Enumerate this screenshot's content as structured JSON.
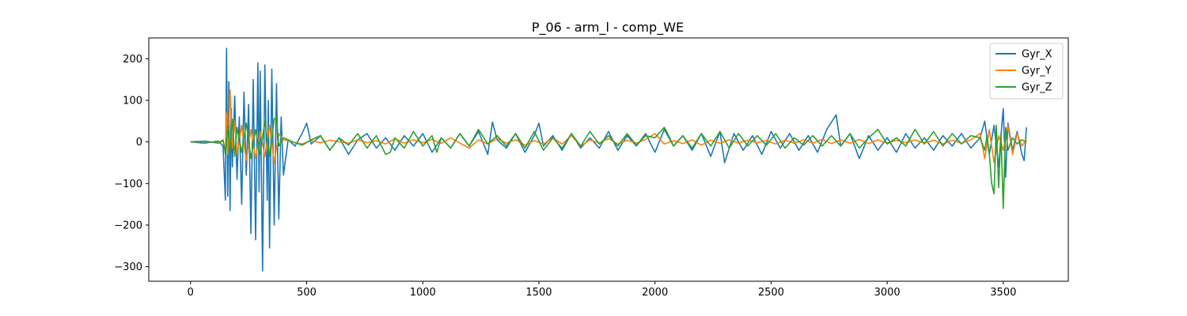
{
  "chart_data": {
    "type": "line",
    "title": "P_06 - arm_l - comp_WE",
    "xlabel": "",
    "ylabel": "",
    "xlim": [
      -180,
      3780
    ],
    "ylim": [
      -335,
      250
    ],
    "xticks": [
      0,
      500,
      1000,
      1500,
      2000,
      2500,
      3000,
      3500
    ],
    "yticks": [
      200,
      100,
      0,
      -100,
      -200,
      -300
    ],
    "xtick_labels": [
      "0",
      "500",
      "1000",
      "1500",
      "2000",
      "2500",
      "3000",
      "3500"
    ],
    "ytick_labels": [
      "200",
      "100",
      "0",
      "−100",
      "−200",
      "−300"
    ],
    "grid": false,
    "legend_position": "top-right",
    "series": [
      {
        "name": "Gyr_X",
        "color": "#1f77b4",
        "x": [
          0,
          60,
          120,
          140,
          150,
          155,
          160,
          165,
          170,
          175,
          180,
          190,
          200,
          210,
          220,
          230,
          240,
          250,
          260,
          270,
          280,
          290,
          295,
          300,
          310,
          320,
          330,
          335,
          340,
          350,
          360,
          370,
          380,
          390,
          400,
          420,
          450,
          480,
          500,
          520,
          560,
          600,
          640,
          680,
          720,
          760,
          800,
          840,
          880,
          920,
          960,
          1000,
          1040,
          1080,
          1120,
          1160,
          1200,
          1240,
          1280,
          1300,
          1320,
          1360,
          1400,
          1440,
          1480,
          1500,
          1520,
          1560,
          1600,
          1640,
          1680,
          1720,
          1760,
          1800,
          1840,
          1880,
          1920,
          1960,
          2000,
          2040,
          2080,
          2120,
          2160,
          2200,
          2240,
          2280,
          2300,
          2340,
          2380,
          2420,
          2460,
          2500,
          2540,
          2580,
          2620,
          2660,
          2700,
          2740,
          2780,
          2800,
          2840,
          2880,
          2920,
          2960,
          3000,
          3040,
          3080,
          3120,
          3160,
          3200,
          3240,
          3280,
          3320,
          3360,
          3400,
          3420,
          3440,
          3460,
          3480,
          3490,
          3500,
          3510,
          3520,
          3540,
          3560,
          3580,
          3590,
          3600
        ],
        "y": [
          0,
          -3,
          2,
          -10,
          -140,
          225,
          -130,
          145,
          -165,
          80,
          -60,
          110,
          -90,
          60,
          -150,
          120,
          -80,
          90,
          -220,
          150,
          -235,
          190,
          -120,
          170,
          -310,
          185,
          -140,
          100,
          -255,
          175,
          -200,
          140,
          -185,
          60,
          -80,
          5,
          -10,
          20,
          45,
          -5,
          15,
          -20,
          10,
          -30,
          5,
          20,
          -15,
          10,
          -20,
          15,
          -10,
          20,
          -25,
          10,
          -15,
          20,
          -10,
          25,
          -30,
          48,
          5,
          -15,
          20,
          -25,
          15,
          45,
          -10,
          15,
          -20,
          20,
          -15,
          10,
          -15,
          25,
          -20,
          15,
          -10,
          20,
          -25,
          30,
          -10,
          15,
          -20,
          20,
          -35,
          25,
          -50,
          20,
          -20,
          15,
          -30,
          25,
          -15,
          20,
          -20,
          15,
          -25,
          30,
          65,
          -10,
          20,
          -40,
          15,
          -20,
          10,
          -25,
          20,
          -15,
          10,
          -20,
          15,
          -10,
          20,
          -15,
          10,
          50,
          -30,
          40,
          -60,
          15,
          80,
          -85,
          45,
          -20,
          25,
          -30,
          -45,
          35
        ]
      },
      {
        "name": "Gyr_Y",
        "color": "#ff7f0e",
        "x": [
          0,
          60,
          120,
          140,
          150,
          155,
          160,
          170,
          180,
          190,
          200,
          220,
          240,
          260,
          280,
          300,
          320,
          340,
          360,
          380,
          400,
          440,
          480,
          520,
          560,
          600,
          640,
          680,
          720,
          760,
          800,
          840,
          880,
          920,
          960,
          1000,
          1040,
          1080,
          1120,
          1160,
          1200,
          1240,
          1280,
          1320,
          1360,
          1400,
          1440,
          1480,
          1520,
          1560,
          1600,
          1640,
          1680,
          1720,
          1760,
          1800,
          1840,
          1880,
          1920,
          1960,
          2000,
          2040,
          2080,
          2120,
          2160,
          2200,
          2240,
          2280,
          2320,
          2360,
          2400,
          2440,
          2480,
          2520,
          2560,
          2600,
          2640,
          2680,
          2720,
          2760,
          2800,
          2840,
          2880,
          2920,
          2960,
          3000,
          3040,
          3080,
          3120,
          3160,
          3200,
          3240,
          3280,
          3320,
          3360,
          3400,
          3420,
          3440,
          3460,
          3480,
          3500,
          3520,
          3540,
          3560,
          3580,
          3600
        ],
        "y": [
          0,
          1,
          -2,
          2,
          -20,
          70,
          -30,
          125,
          -15,
          50,
          -30,
          40,
          -45,
          30,
          -40,
          25,
          -35,
          40,
          -50,
          20,
          5,
          0,
          -5,
          3,
          -2,
          4,
          0,
          -3,
          5,
          -2,
          3,
          -5,
          8,
          -3,
          5,
          -2,
          6,
          -4,
          10,
          -3,
          -15,
          5,
          -5,
          8,
          -3,
          5,
          -8,
          3,
          -5,
          10,
          -5,
          15,
          -10,
          5,
          -3,
          8,
          -5,
          4,
          -3,
          6,
          20,
          -5,
          3,
          -4,
          5,
          -8,
          4,
          -3,
          5,
          -3,
          4,
          -2,
          3,
          -5,
          4,
          -3,
          5,
          -3,
          6,
          -4,
          5,
          -3,
          6,
          -4,
          5,
          -3,
          4,
          -2,
          5,
          -3,
          4,
          -5,
          4,
          -3,
          5,
          20,
          -40,
          30,
          -50,
          15,
          -20,
          40,
          -30,
          20,
          -10,
          5
        ]
      },
      {
        "name": "Gyr_Z",
        "color": "#2ca02c",
        "x": [
          0,
          60,
          120,
          140,
          150,
          160,
          170,
          180,
          190,
          200,
          220,
          240,
          260,
          280,
          300,
          320,
          340,
          360,
          370,
          380,
          400,
          440,
          480,
          520,
          560,
          600,
          640,
          680,
          720,
          760,
          800,
          840,
          860,
          880,
          920,
          960,
          1000,
          1040,
          1060,
          1080,
          1120,
          1160,
          1200,
          1240,
          1280,
          1320,
          1360,
          1400,
          1440,
          1480,
          1520,
          1560,
          1600,
          1640,
          1680,
          1720,
          1760,
          1800,
          1840,
          1880,
          1920,
          1960,
          2000,
          2040,
          2050,
          2080,
          2120,
          2160,
          2200,
          2240,
          2280,
          2320,
          2360,
          2400,
          2440,
          2480,
          2520,
          2560,
          2600,
          2640,
          2680,
          2720,
          2760,
          2800,
          2840,
          2880,
          2920,
          2960,
          3000,
          3040,
          3080,
          3120,
          3160,
          3200,
          3240,
          3280,
          3320,
          3360,
          3400,
          3420,
          3430,
          3440,
          3450,
          3460,
          3470,
          3480,
          3490,
          3500,
          3510,
          3520,
          3540,
          3560,
          3580,
          3600
        ],
        "y": [
          0,
          2,
          -3,
          5,
          -30,
          40,
          -20,
          55,
          -35,
          35,
          -25,
          45,
          -40,
          30,
          -30,
          50,
          -35,
          55,
          60,
          -10,
          10,
          0,
          -8,
          5,
          15,
          -20,
          10,
          -8,
          20,
          -15,
          15,
          -30,
          -25,
          10,
          -15,
          25,
          -10,
          15,
          -25,
          10,
          -15,
          20,
          -10,
          30,
          -5,
          15,
          -10,
          20,
          -15,
          25,
          -20,
          10,
          -15,
          20,
          -10,
          25,
          -5,
          15,
          -10,
          20,
          -8,
          15,
          10,
          35,
          25,
          -10,
          15,
          -15,
          20,
          -10,
          25,
          -15,
          20,
          -10,
          15,
          -8,
          20,
          -15,
          10,
          -8,
          15,
          -10,
          15,
          -10,
          20,
          -15,
          10,
          30,
          -5,
          10,
          -10,
          30,
          -5,
          25,
          -10,
          20,
          -5,
          15,
          10,
          -20,
          15,
          -30,
          -100,
          -125,
          40,
          -110,
          20,
          -160,
          35,
          -20,
          10,
          -5,
          5,
          0
        ]
      }
    ]
  }
}
